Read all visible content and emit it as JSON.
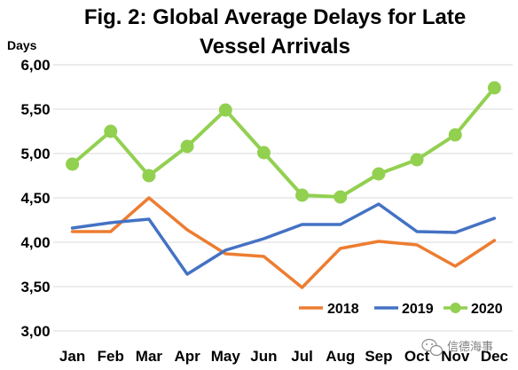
{
  "chart_data": {
    "type": "line",
    "title_lines": [
      "Fig. 2: Global Average Delays for Late",
      "Vessel Arrivals"
    ],
    "ylabel": "Days",
    "xlabel": "",
    "categories": [
      "Jan",
      "Feb",
      "Mar",
      "Apr",
      "May",
      "Jun",
      "Jul",
      "Aug",
      "Sep",
      "Oct",
      "Nov",
      "Dec"
    ],
    "ylim": [
      3.0,
      6.0
    ],
    "yticks": [
      3.0,
      3.5,
      4.0,
      4.5,
      5.0,
      5.5,
      6.0
    ],
    "ytick_labels": [
      "3,00",
      "3,50",
      "4,00",
      "4,50",
      "5,00",
      "5,50",
      "6,00"
    ],
    "grid": "horizontal",
    "legend_position": "bottom-right",
    "series": [
      {
        "name": "2018",
        "color": "#ED7D31",
        "marker": "none",
        "values": [
          4.12,
          4.12,
          4.5,
          4.14,
          3.87,
          3.84,
          3.49,
          3.93,
          4.01,
          3.97,
          3.73,
          4.02
        ]
      },
      {
        "name": "2019",
        "color": "#4472C4",
        "marker": "none",
        "values": [
          4.16,
          4.22,
          4.26,
          3.64,
          3.91,
          4.04,
          4.2,
          4.2,
          4.43,
          4.12,
          4.11,
          4.27
        ]
      },
      {
        "name": "2020",
        "color": "#92D050",
        "marker": "circle",
        "values": [
          4.88,
          5.25,
          4.75,
          5.08,
          5.49,
          5.01,
          4.53,
          4.51,
          4.77,
          4.93,
          5.21,
          5.74
        ]
      }
    ]
  },
  "watermark": {
    "text": "信德海事",
    "icon": "wechat-bubble-icon"
  }
}
